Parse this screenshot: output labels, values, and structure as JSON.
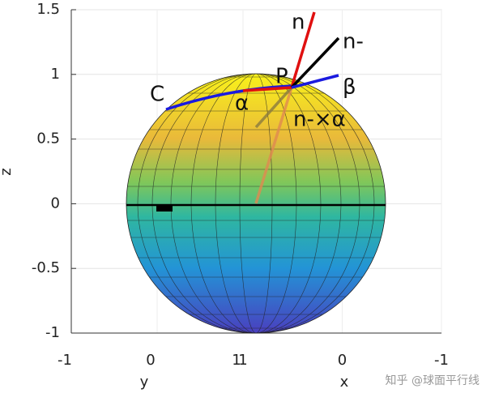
{
  "chart_data": {
    "type": "surface",
    "xlabel": "x",
    "ylabel": "y",
    "zlabel": "z",
    "xlim": [
      -1,
      1
    ],
    "ylim": [
      -1,
      1
    ],
    "zlim": [
      -1,
      1.5
    ],
    "xticks": [
      -1,
      0,
      1
    ],
    "yticks": [
      -1,
      0,
      1
    ],
    "zticks": [
      -1,
      -0.5,
      0,
      0.5,
      1,
      1.5
    ],
    "grid": true,
    "annotations": [
      "n",
      "n-",
      "P",
      "β",
      "C",
      "α",
      "n-×α"
    ],
    "watermark": "知乎 @球面平行线"
  }
}
